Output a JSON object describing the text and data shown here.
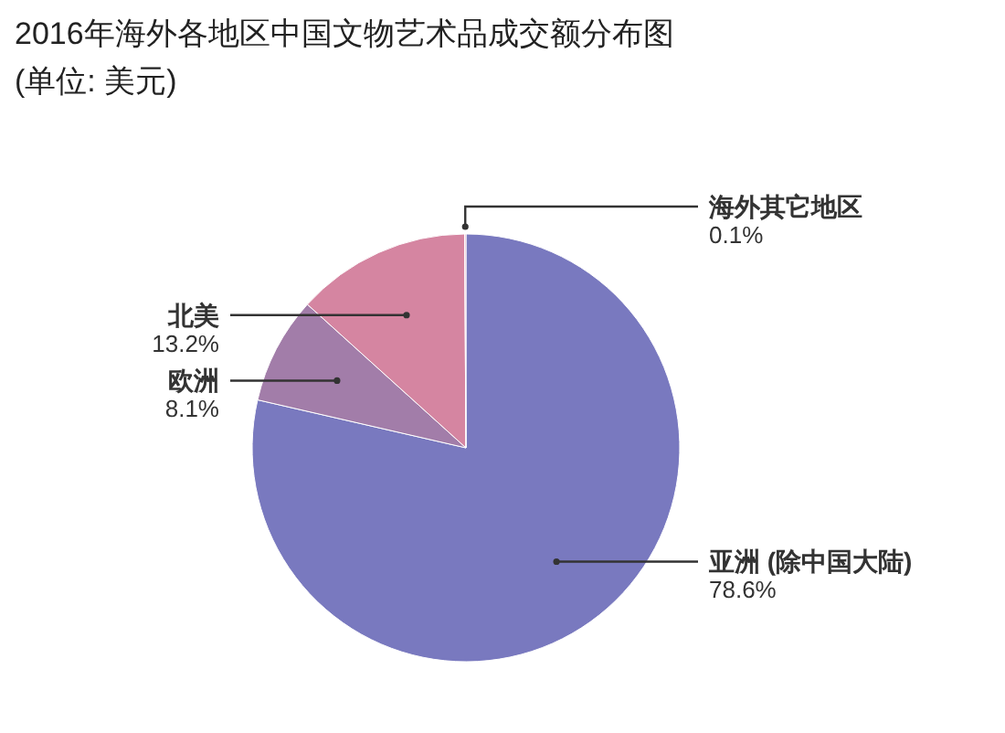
{
  "chart_data": {
    "type": "pie",
    "title": "2016年海外各地区中国文物艺术品成交额分布图",
    "subtitle": "(单位: 美元)",
    "categories": [
      "亚洲 (除中国大陆)",
      "欧洲",
      "北美",
      "海外其它地区"
    ],
    "values": [
      78.6,
      8.1,
      13.2,
      0.1
    ],
    "colors": [
      "#7979bf",
      "#a27da9",
      "#d585a1",
      "#e2a6bb"
    ],
    "value_labels": [
      "78.6%",
      "8.1%",
      "13.2%",
      "0.1%"
    ]
  }
}
